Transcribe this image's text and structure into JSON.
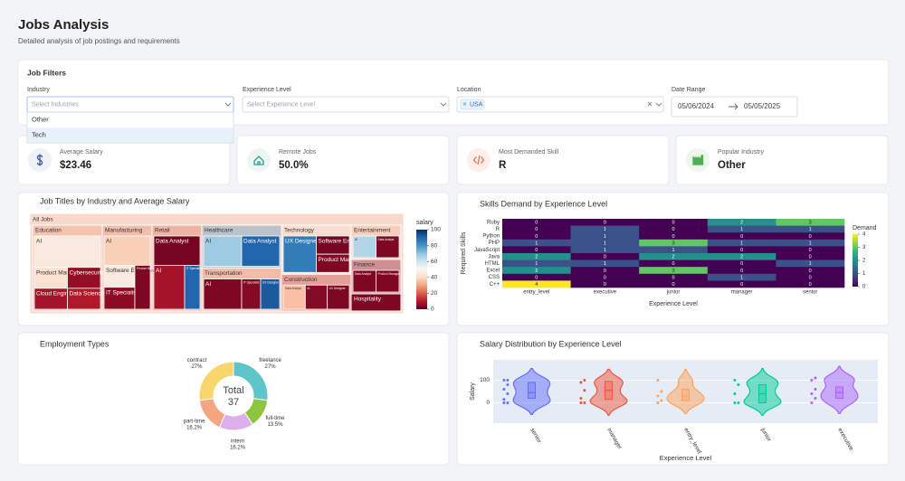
{
  "header": {
    "title": "Jobs Analysis",
    "subtitle": "Detailed analysis of job postings and requirements"
  },
  "filters": {
    "title": "Job Filters",
    "industry": {
      "label": "Industry",
      "placeholder": "Select Industries",
      "options": [
        "Other",
        "Tech"
      ]
    },
    "experience": {
      "label": "Experience Level",
      "placeholder": "Select Experience Level"
    },
    "location": {
      "label": "Location",
      "selected": [
        "USA"
      ]
    },
    "date_range": {
      "label": "Date Range",
      "start": "05/06/2024",
      "end": "05/05/2025"
    }
  },
  "kpis": [
    {
      "label": "Average Salary",
      "value": "$23.46"
    },
    {
      "label": "Remote Jobs",
      "value": "50.0%"
    },
    {
      "label": "Most Demanded Skill",
      "value": "R"
    },
    {
      "label": "Popular Industry",
      "value": "Other"
    }
  ],
  "chart_data": [
    {
      "type": "treemap",
      "title": "Job Titles by Industry and Average Salary",
      "root": "All Jobs",
      "color_label": "salary",
      "clim": [
        0,
        100
      ],
      "cticks": [
        0,
        20,
        40,
        60,
        80,
        100
      ],
      "colorscale": [
        "#67001f",
        "#b2182b",
        "#d6604d",
        "#f4a582",
        "#fddbc7",
        "#f7f7f7",
        "#d1e5f0",
        "#92c5de",
        "#4393c3",
        "#2166ac",
        "#053061"
      ],
      "sectors": [
        {
          "name": "Education",
          "children": [
            {
              "name": "AI",
              "size": 3,
              "salary": 45
            },
            {
              "name": "Product Manager",
              "size": 1,
              "salary": 42
            },
            {
              "name": "Cloud Engineer",
              "size": 1,
              "salary": 8
            },
            {
              "name": "Cybersecurity",
              "size": 1,
              "salary": 6
            },
            {
              "name": "Data Science",
              "size": 1,
              "salary": 10
            }
          ]
        },
        {
          "name": "Manufacturing",
          "children": [
            {
              "name": "AI",
              "size": 2,
              "salary": 38
            },
            {
              "name": "Software Engineer",
              "size": 1,
              "salary": 45
            },
            {
              "name": "IT Specialist",
              "size": 1,
              "salary": 5
            },
            {
              "name": "Product Manager",
              "size": 1,
              "salary": 3
            }
          ]
        },
        {
          "name": "Retail",
          "children": [
            {
              "name": "Data Analyst",
              "size": 2,
              "salary": 2
            },
            {
              "name": "AI",
              "size": 2,
              "salary": 8
            },
            {
              "name": "IT Specialist",
              "size": 1,
              "salary": 90
            }
          ]
        },
        {
          "name": "Healthcare",
          "children": [
            {
              "name": "AI",
              "size": 2,
              "salary": 68
            },
            {
              "name": "Data Analyst",
              "size": 2,
              "salary": 90
            }
          ]
        },
        {
          "name": "Transportation",
          "children": [
            {
              "name": "AI",
              "size": 2,
              "salary": 3
            },
            {
              "name": "IT Specialist",
              "size": 1,
              "salary": 4
            },
            {
              "name": "UX Designer",
              "size": 1,
              "salary": 92
            }
          ]
        },
        {
          "name": "Technology",
          "children": [
            {
              "name": "UX Designer",
              "size": 2,
              "salary": 85
            },
            {
              "name": "Software Engineer",
              "size": 1,
              "salary": 2
            },
            {
              "name": "Product Manager",
              "size": 1,
              "salary": 3
            }
          ]
        },
        {
          "name": "Construction",
          "children": [
            {
              "name": "Data Analyst",
              "size": 1,
              "salary": 35
            },
            {
              "name": "AI",
              "size": 1,
              "salary": 4
            },
            {
              "name": "UX Designer",
              "size": 1,
              "salary": 3
            }
          ]
        },
        {
          "name": "Entertainment",
          "children": [
            {
              "name": "AI",
              "size": 1,
              "salary": 65
            },
            {
              "name": "Data Analyst",
              "size": 1,
              "salary": 3
            }
          ]
        },
        {
          "name": "Finance",
          "children": [
            {
              "name": "Data Analyst",
              "size": 1,
              "salary": 3
            },
            {
              "name": "Product Manager",
              "size": 1,
              "salary": 3
            }
          ]
        },
        {
          "name": "Hospitality",
          "size": 1,
          "salary": 3
        }
      ]
    },
    {
      "type": "heatmap",
      "title": "Skills Demand by Experience Level",
      "x": [
        "entry_level",
        "executive",
        "junior",
        "manager",
        "senior"
      ],
      "y": [
        "Ruby",
        "R",
        "Python",
        "PHP",
        "JavaScript",
        "Java",
        "HTML",
        "Excel",
        "CSS",
        "C++"
      ],
      "z": [
        [
          0,
          0,
          0,
          2,
          3
        ],
        [
          0,
          1,
          0,
          1,
          1
        ],
        [
          0,
          1,
          0,
          0,
          0
        ],
        [
          1,
          1,
          3,
          1,
          1
        ],
        [
          0,
          1,
          1,
          0,
          0
        ],
        [
          2,
          0,
          2,
          2,
          0
        ],
        [
          1,
          1,
          0,
          0,
          1
        ],
        [
          2,
          0,
          3,
          0,
          0
        ],
        [
          0,
          0,
          0,
          1,
          0
        ],
        [
          4,
          0,
          0,
          0,
          0
        ]
      ],
      "xlabel": "Experience Level",
      "ylabel": "Required Skills",
      "color_label": "Demand",
      "clim": [
        0,
        4
      ],
      "cticks": [
        0,
        1,
        2,
        3,
        4
      ],
      "colorscale": [
        "#440154",
        "#482878",
        "#3e4989",
        "#31688e",
        "#26828e",
        "#1f9e89",
        "#35b779",
        "#6ece58",
        "#b5de2b",
        "#fde725"
      ]
    },
    {
      "type": "pie",
      "title": "Employment Types",
      "categories": [
        "freelance",
        "full-time",
        "intern",
        "part-time",
        "contract"
      ],
      "values": [
        27,
        13.5,
        16.2,
        16.2,
        27
      ],
      "value_labels": [
        "27%",
        "13.5%",
        "16.2%",
        "16.2%",
        "27%"
      ],
      "colors": [
        "#5fc5c9",
        "#8cc63f",
        "#dcb0ec",
        "#f4a582",
        "#f9d56e"
      ],
      "center_label": "Total",
      "total": 37
    },
    {
      "type": "violin",
      "title": "Salary Distribution by Experience Level",
      "xlabel": "Experience Level",
      "ylabel": "Salary",
      "ylim": [
        -90,
        190
      ],
      "yticks": [
        0,
        100
      ],
      "series": [
        {
          "name": "senior",
          "color": "#636efa",
          "values": [
            0,
            0,
            15,
            40,
            60,
            80,
            100,
            100
          ],
          "q1": 20,
          "median": 45,
          "q3": 90
        },
        {
          "name": "manager",
          "color": "#ef553b",
          "values": [
            0,
            0,
            20,
            55,
            90,
            100
          ],
          "q1": 15,
          "median": 55,
          "q3": 95
        },
        {
          "name": "entry_level",
          "color": "#ffa15a",
          "values": [
            0,
            10,
            30,
            50,
            100
          ],
          "q1": 10,
          "median": 30,
          "q3": 60
        },
        {
          "name": "junior",
          "color": "#00cc96",
          "values": [
            0,
            0,
            40,
            80,
            100
          ],
          "q1": 0,
          "median": 40,
          "q3": 80
        },
        {
          "name": "executive",
          "color": "#ab63fa",
          "values": [
            0,
            20,
            40,
            60,
            100,
            110
          ],
          "q1": 20,
          "median": 45,
          "q3": 70
        }
      ]
    }
  ]
}
